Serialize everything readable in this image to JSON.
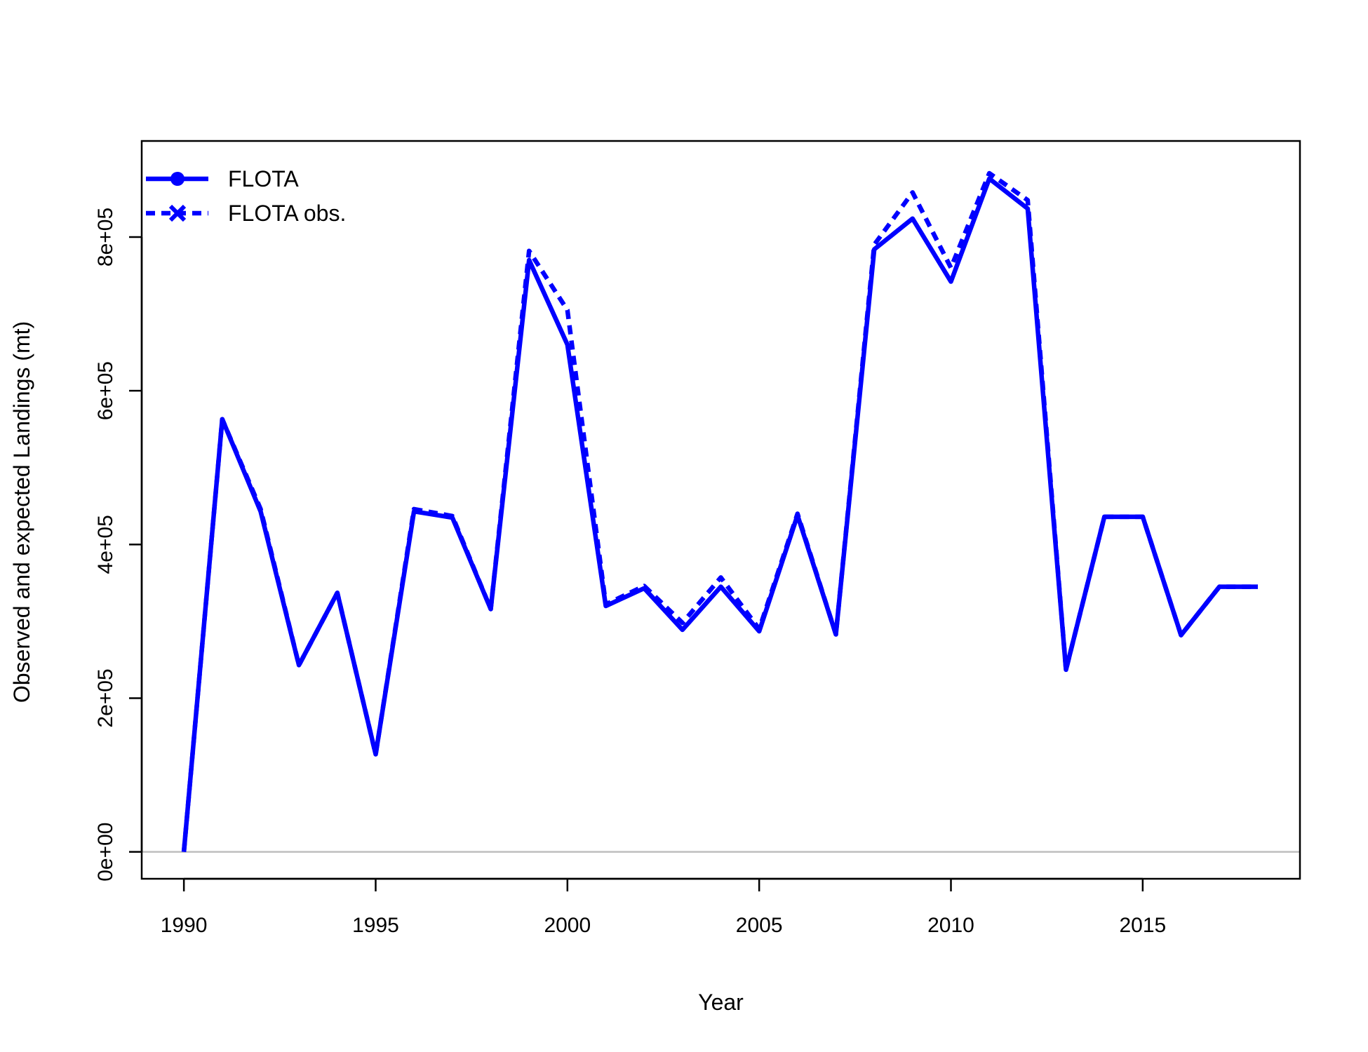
{
  "chart_data": {
    "type": "line",
    "title": "",
    "xlabel": "Year",
    "ylabel": "Observed and expected Landings (mt)",
    "xlim": [
      1988.9,
      2019.1
    ],
    "ylim": [
      -35000,
      925000
    ],
    "xticks": [
      1990,
      1995,
      2000,
      2005,
      2010,
      2015
    ],
    "yticks": [
      0,
      200000,
      400000,
      600000,
      800000
    ],
    "ytick_labels": [
      "0e+00",
      "2e+05",
      "4e+05",
      "6e+05",
      "8e+05"
    ],
    "xtick_labels": [
      "1990",
      "1995",
      "2000",
      "2005",
      "2010",
      "2015"
    ],
    "reference_line": {
      "y": 0,
      "color": "#bebebe"
    },
    "legend_position": "top-left",
    "x": [
      1990,
      1991,
      1992,
      1993,
      1994,
      1995,
      1996,
      1997,
      1998,
      1999,
      2000,
      2001,
      2002,
      2003,
      2004,
      2005,
      2006,
      2007,
      2008,
      2009,
      2010,
      2011,
      2012,
      2013,
      2014,
      2015,
      2016,
      2017,
      2018
    ],
    "series": [
      {
        "name": "FLOTA",
        "style": "solid",
        "marker": "circle",
        "color": "#0000ff",
        "values": [
          0,
          563000,
          443000,
          243000,
          337000,
          127000,
          443000,
          435000,
          316000,
          770000,
          660000,
          320000,
          343000,
          289000,
          345000,
          287000,
          438000,
          283000,
          784000,
          824000,
          742000,
          876000,
          837000,
          237000,
          436000,
          436000,
          282000,
          345000,
          345000
        ]
      },
      {
        "name": "FLOTA obs.",
        "style": "dotted",
        "marker": "x",
        "color": "#0000ff",
        "values": [
          0,
          563000,
          446000,
          243000,
          337000,
          127000,
          446000,
          437000,
          316000,
          782000,
          705000,
          322000,
          346000,
          298000,
          357000,
          290000,
          440000,
          283000,
          790000,
          858000,
          760000,
          883000,
          848000,
          237000,
          436000,
          436000,
          282000,
          345000,
          345000
        ]
      }
    ]
  }
}
